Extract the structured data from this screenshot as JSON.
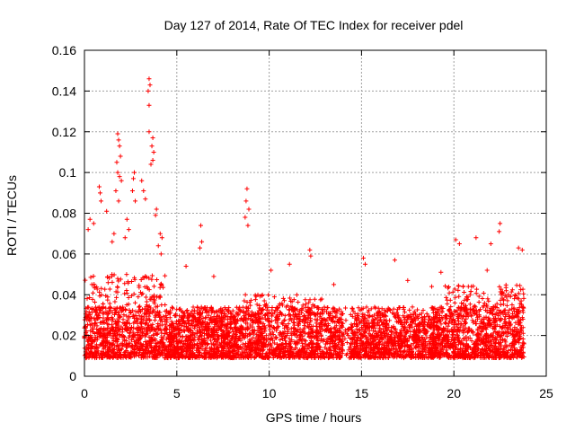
{
  "chart_data": {
    "type": "scatter",
    "title": "Day 127 of 2014, Rate Of TEC Index for receiver pdel",
    "xlabel": "GPS time / hours",
    "ylabel": "ROTI / TECUs",
    "xlim": [
      0,
      25
    ],
    "ylim": [
      0,
      0.16
    ],
    "x_ticks": [
      0,
      5,
      10,
      15,
      20,
      25
    ],
    "x_tick_labels": [
      "0",
      "5",
      "10",
      "15",
      "20",
      "25"
    ],
    "y_ticks": [
      0,
      0.02,
      0.04,
      0.06,
      0.08,
      0.1,
      0.12,
      0.14,
      0.16
    ],
    "y_tick_labels": [
      "0",
      "0.02",
      "0.04",
      "0.06",
      "0.08",
      "0.1",
      "0.12",
      "0.14",
      "0.16"
    ],
    "grid": true,
    "marker": "+",
    "series_color": "#ff0000",
    "x_range_of_data": [
      0,
      23.8
    ],
    "notable_points": [
      {
        "x": 3.5,
        "y": 0.146
      },
      {
        "x": 3.55,
        "y": 0.143
      },
      {
        "x": 3.45,
        "y": 0.14
      },
      {
        "x": 3.5,
        "y": 0.133
      },
      {
        "x": 3.5,
        "y": 0.12
      },
      {
        "x": 3.7,
        "y": 0.117
      },
      {
        "x": 3.65,
        "y": 0.113
      },
      {
        "x": 3.75,
        "y": 0.11
      },
      {
        "x": 3.7,
        "y": 0.106
      },
      {
        "x": 3.6,
        "y": 0.104
      },
      {
        "x": 1.8,
        "y": 0.119
      },
      {
        "x": 1.85,
        "y": 0.116
      },
      {
        "x": 1.9,
        "y": 0.113
      },
      {
        "x": 1.95,
        "y": 0.108
      },
      {
        "x": 1.75,
        "y": 0.105
      },
      {
        "x": 1.8,
        "y": 0.1
      },
      {
        "x": 1.9,
        "y": 0.098
      },
      {
        "x": 2.0,
        "y": 0.096
      },
      {
        "x": 1.7,
        "y": 0.091
      },
      {
        "x": 1.85,
        "y": 0.086
      },
      {
        "x": 2.7,
        "y": 0.1
      },
      {
        "x": 2.65,
        "y": 0.097
      },
      {
        "x": 2.6,
        "y": 0.091
      },
      {
        "x": 2.75,
        "y": 0.086
      },
      {
        "x": 3.1,
        "y": 0.096
      },
      {
        "x": 3.2,
        "y": 0.091
      },
      {
        "x": 3.3,
        "y": 0.087
      },
      {
        "x": 0.8,
        "y": 0.093
      },
      {
        "x": 0.85,
        "y": 0.09
      },
      {
        "x": 0.9,
        "y": 0.086
      },
      {
        "x": 0.3,
        "y": 0.077
      },
      {
        "x": 0.5,
        "y": 0.075
      },
      {
        "x": 0.2,
        "y": 0.072
      },
      {
        "x": 8.8,
        "y": 0.092
      },
      {
        "x": 8.75,
        "y": 0.086
      },
      {
        "x": 8.9,
        "y": 0.082
      },
      {
        "x": 8.7,
        "y": 0.078
      },
      {
        "x": 8.85,
        "y": 0.074
      },
      {
        "x": 6.3,
        "y": 0.074
      },
      {
        "x": 6.35,
        "y": 0.066
      },
      {
        "x": 6.25,
        "y": 0.063
      },
      {
        "x": 12.2,
        "y": 0.062
      },
      {
        "x": 12.25,
        "y": 0.059
      },
      {
        "x": 15.1,
        "y": 0.058
      },
      {
        "x": 15.2,
        "y": 0.055
      },
      {
        "x": 16.8,
        "y": 0.057
      },
      {
        "x": 20.1,
        "y": 0.067
      },
      {
        "x": 20.3,
        "y": 0.065
      },
      {
        "x": 21.2,
        "y": 0.068
      },
      {
        "x": 22.0,
        "y": 0.065
      },
      {
        "x": 22.5,
        "y": 0.075
      },
      {
        "x": 22.45,
        "y": 0.071
      },
      {
        "x": 23.5,
        "y": 0.063
      },
      {
        "x": 23.7,
        "y": 0.062
      },
      {
        "x": 19.3,
        "y": 0.051
      },
      {
        "x": 11.1,
        "y": 0.055
      },
      {
        "x": 10.1,
        "y": 0.052
      },
      {
        "x": 5.5,
        "y": 0.054
      },
      {
        "x": 7.0,
        "y": 0.049
      },
      {
        "x": 13.5,
        "y": 0.045
      },
      {
        "x": 17.5,
        "y": 0.047
      },
      {
        "x": 18.8,
        "y": 0.044
      },
      {
        "x": 21.8,
        "y": 0.052
      },
      {
        "x": 4.1,
        "y": 0.07
      },
      {
        "x": 4.2,
        "y": 0.068
      },
      {
        "x": 4.0,
        "y": 0.064
      },
      {
        "x": 4.15,
        "y": 0.06
      },
      {
        "x": 1.6,
        "y": 0.07
      },
      {
        "x": 1.5,
        "y": 0.066
      },
      {
        "x": 2.3,
        "y": 0.077
      },
      {
        "x": 2.4,
        "y": 0.072
      },
      {
        "x": 2.2,
        "y": 0.068
      },
      {
        "x": 3.9,
        "y": 0.082
      },
      {
        "x": 3.85,
        "y": 0.079
      },
      {
        "x": 1.2,
        "y": 0.081
      }
    ],
    "bulk_description_values": {
      "typical_min": 0.005,
      "typical_max": 0.04,
      "dense_band": [
        0.01,
        0.03
      ],
      "gap_hours": [
        14.0,
        14.4
      ]
    }
  }
}
